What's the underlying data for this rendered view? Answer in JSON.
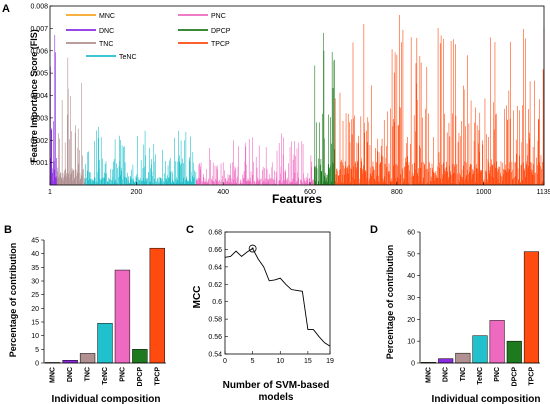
{
  "colors": {
    "MNC": "#f5a623",
    "DNC": "#8a2be2",
    "TNC": "#b09090",
    "TeNC": "#20c0cc",
    "PNC": "#ee6ac0",
    "DPCP": "#1e7a1e",
    "TPCP": "#ff4a10",
    "mcc_line": "#000000"
  },
  "chart_data": [
    {
      "panel": "A",
      "type": "bar",
      "xlabel": "Features",
      "ylabel": "Feature Importance Score (FIS)",
      "xlim": [
        1,
        1139
      ],
      "ylim": [
        0,
        0.008
      ],
      "xticks": [
        1,
        200,
        400,
        600,
        800,
        1000,
        1139
      ],
      "yticks": [
        0.001,
        0.002,
        0.003,
        0.004,
        0.005,
        0.006,
        0.007,
        0.008
      ],
      "legend": {
        "placement": "top-left",
        "entries": [
          "MNC",
          "PNC",
          "DNC",
          "DPCP",
          "TNC",
          "TPCP",
          "TeNC"
        ]
      },
      "groups": [
        {
          "name": "MNC",
          "range": [
            1,
            1
          ],
          "max": 0.0004
        },
        {
          "name": "DNC",
          "range": [
            2,
            17
          ],
          "max": 0.0067
        },
        {
          "name": "TNC",
          "range": [
            18,
            81
          ],
          "max": 0.0057
        },
        {
          "name": "TeNC",
          "range": [
            82,
            337
          ],
          "max": 0.0026
        },
        {
          "name": "PNC",
          "range": [
            338,
            609
          ],
          "max": 0.0023
        },
        {
          "name": "DPCP",
          "range": [
            610,
            657
          ],
          "max": 0.0068
        },
        {
          "name": "TPCP",
          "range": [
            658,
            1139
          ],
          "max": 0.0076
        }
      ]
    },
    {
      "panel": "B",
      "type": "bar",
      "xlabel": "Individual composition",
      "ylabel": "Percentage of contribution",
      "ylim": [
        0,
        45
      ],
      "yticks": [
        0,
        5,
        10,
        15,
        20,
        25,
        30,
        35,
        40,
        45
      ],
      "categories": [
        "MNC",
        "DNC",
        "TNC",
        "TeNC",
        "PNC",
        "DPCP",
        "TPCP"
      ],
      "values": [
        0.2,
        1.0,
        3.5,
        14.5,
        34.0,
        5.0,
        42.0
      ]
    },
    {
      "panel": "C",
      "type": "line",
      "xlabel": "Number of SVM-based models",
      "ylabel": "MCC",
      "xlim": [
        0,
        19
      ],
      "ylim": [
        0.54,
        0.68
      ],
      "xticks": [
        0,
        5,
        10,
        15,
        19
      ],
      "yticks": [
        0.54,
        0.56,
        0.58,
        0.6,
        0.62,
        0.64,
        0.66,
        0.68
      ],
      "x": [
        0,
        1,
        2,
        3,
        4,
        5,
        6,
        7,
        8,
        9,
        10,
        11,
        12,
        13,
        14,
        15,
        16,
        17,
        18,
        19
      ],
      "y": [
        0.651,
        0.652,
        0.658,
        0.652,
        0.657,
        0.661,
        0.649,
        0.64,
        0.624,
        0.625,
        0.627,
        0.62,
        0.614,
        0.613,
        0.612,
        0.568,
        0.568,
        0.56,
        0.553,
        0.549
      ],
      "highlight": {
        "x": 5,
        "y": 0.661
      }
    },
    {
      "panel": "D",
      "type": "bar",
      "xlabel": "Individual composition",
      "ylabel": "Percentage of contribution",
      "ylim": [
        0,
        60
      ],
      "yticks": [
        0,
        10,
        20,
        30,
        40,
        50,
        60
      ],
      "categories": [
        "MNC",
        "DNC",
        "TNC",
        "TeNC",
        "PNC",
        "DPCP",
        "TPCP"
      ],
      "values": [
        0.3,
        2.0,
        4.5,
        12.5,
        19.5,
        10.0,
        51.0
      ]
    }
  ],
  "panels": {
    "A": "A",
    "B": "B",
    "C": "C",
    "D": "D"
  }
}
